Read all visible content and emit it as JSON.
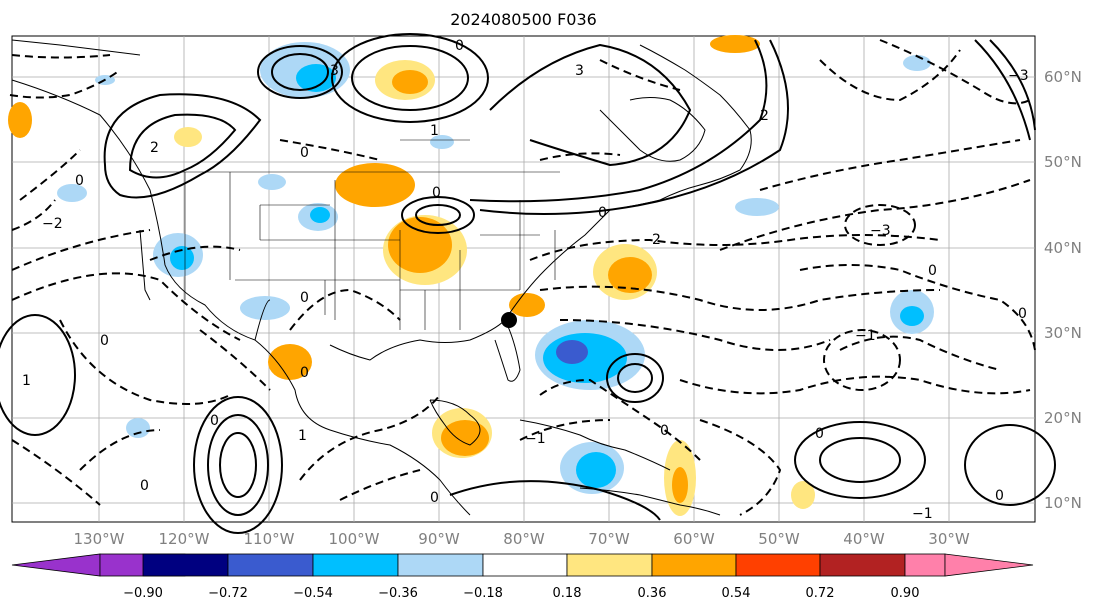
{
  "title": "2024080500 F036",
  "latitude_labels": [
    "60°N",
    "50°N",
    "40°N",
    "30°N",
    "20°N",
    "10°N"
  ],
  "longitude_labels": [
    "130°W",
    "120°W",
    "110°W",
    "100°W",
    "90°W",
    "80°W",
    "70°W",
    "60°W",
    "50°W",
    "40°W",
    "30°W"
  ],
  "colorbar": {
    "colors": [
      "#9932cc",
      "#000080",
      "#3a5bcf",
      "#00bfff",
      "#add8f6",
      "#ffffff",
      "#ffe680",
      "#ffa500",
      "#ff4000",
      "#b22222",
      "#ff80aa"
    ],
    "ticks": [
      "−0.90",
      "−0.72",
      "−0.54",
      "−0.36",
      "−0.18",
      "0.18",
      "0.36",
      "0.54",
      "0.72",
      "0.90"
    ],
    "extend": "both"
  },
  "contour_labels": [
    "0",
    "1",
    "2",
    "3",
    "−1",
    "−2",
    "−3"
  ],
  "marker": "storm-center-marker"
}
